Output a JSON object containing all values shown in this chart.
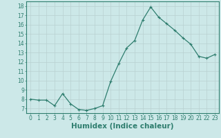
{
  "x": [
    0,
    1,
    2,
    3,
    4,
    5,
    6,
    7,
    8,
    9,
    10,
    11,
    12,
    13,
    14,
    15,
    16,
    17,
    18,
    19,
    20,
    21,
    22,
    23
  ],
  "y": [
    8.0,
    7.9,
    7.9,
    7.3,
    8.6,
    7.5,
    6.9,
    6.8,
    7.0,
    7.3,
    9.9,
    11.8,
    13.5,
    14.3,
    16.5,
    17.9,
    16.8,
    16.1,
    15.4,
    14.6,
    13.9,
    12.6,
    12.4,
    12.8
  ],
  "line_color": "#2e7d6e",
  "marker": "+",
  "marker_size": 3,
  "bg_color": "#cce8e8",
  "grid_color": "#b8d0d0",
  "xlabel": "Humidex (Indice chaleur)",
  "xlim": [
    -0.5,
    23.5
  ],
  "ylim": [
    6.5,
    18.5
  ],
  "yticks": [
    7,
    8,
    9,
    10,
    11,
    12,
    13,
    14,
    15,
    16,
    17,
    18
  ],
  "xticks": [
    0,
    1,
    2,
    3,
    4,
    5,
    6,
    7,
    8,
    9,
    10,
    11,
    12,
    13,
    14,
    15,
    16,
    17,
    18,
    19,
    20,
    21,
    22,
    23
  ],
  "tick_color": "#2e7d6e",
  "axis_color": "#2e7d6e",
  "xlabel_fontsize": 7.5,
  "tick_fontsize": 5.5,
  "linewidth": 0.9,
  "markeredgewidth": 0.8
}
